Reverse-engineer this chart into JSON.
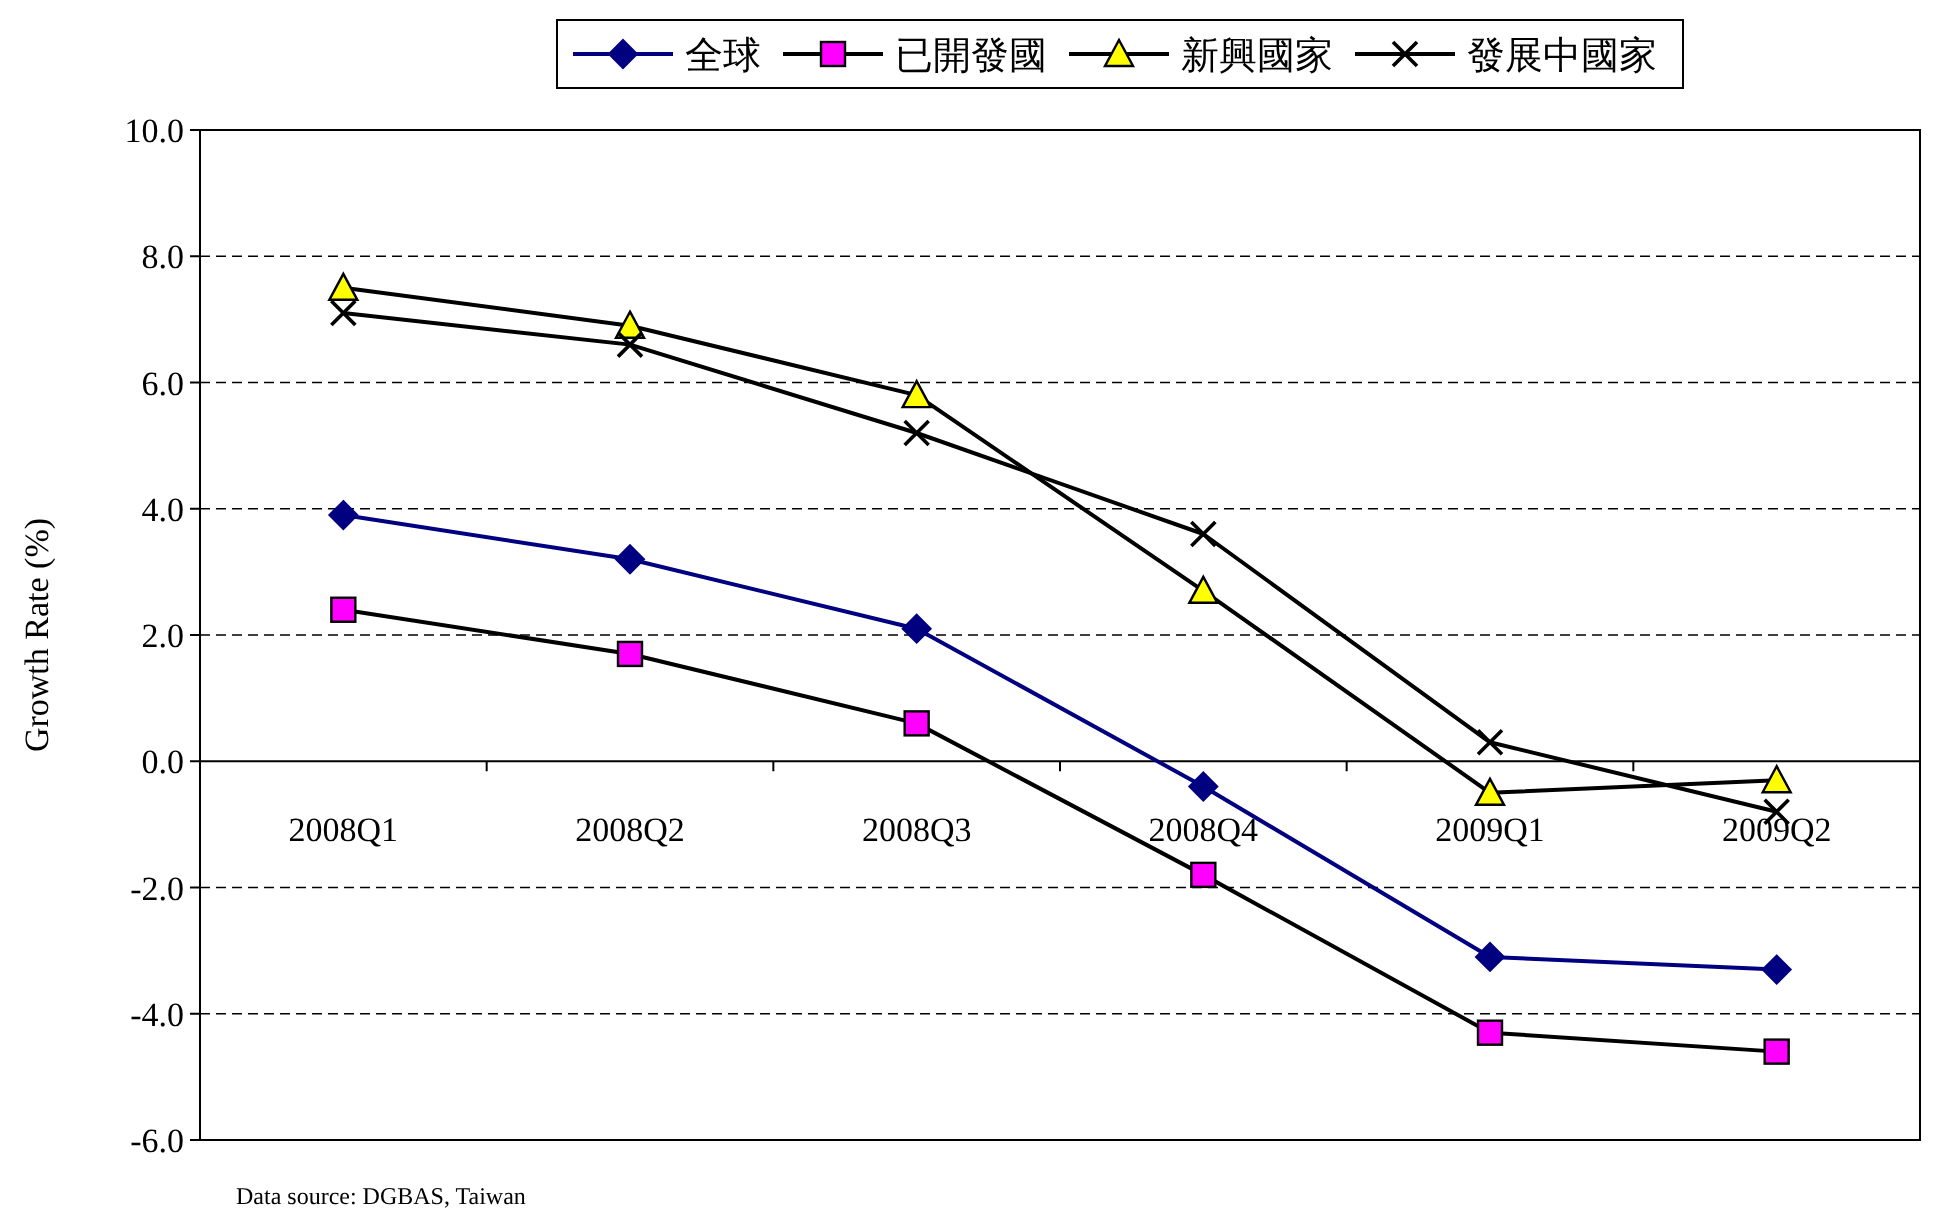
{
  "chart_data": {
    "type": "line",
    "ylabel": "Growth Rate (%)",
    "categories": [
      "2008Q1",
      "2008Q2",
      "2008Q3",
      "2008Q4",
      "2009Q1",
      "2009Q2"
    ],
    "series": [
      {
        "name": "全球",
        "color": "#000080",
        "colors": [
          "#000080",
          "#000080",
          "#000080",
          "#000080",
          "#000080",
          "#000080"
        ],
        "marker": "diamond",
        "values": [
          3.9,
          3.2,
          2.1,
          -0.4,
          -3.1,
          -3.3
        ]
      },
      {
        "name": "已開發國",
        "color": "#000000",
        "colors": [
          "#ff00ff",
          "#ff00ff",
          "#ff00ff",
          "#ff00ff",
          "#ff00ff",
          "#ff00ff"
        ],
        "marker": "square",
        "values": [
          2.4,
          1.7,
          0.6,
          -1.8,
          -4.3,
          -4.6
        ]
      },
      {
        "name": "新興國家",
        "color": "#000000",
        "colors": [
          "#ffff00",
          "#ffff00",
          "#ffff00",
          "#ffff00",
          "#ffff00",
          "#ffff00"
        ],
        "marker": "triangle",
        "values": [
          7.5,
          6.9,
          5.8,
          2.7,
          -0.5,
          -0.3
        ]
      },
      {
        "name": "發展中國家",
        "color": "#000000",
        "colors": [
          "#000000",
          "#000000",
          "#000000",
          "#000000",
          "#000000",
          "#000000"
        ],
        "marker": "cross",
        "values": [
          7.1,
          6.6,
          5.2,
          3.6,
          0.3,
          -0.8
        ]
      }
    ],
    "ylim": [
      -6,
      10
    ],
    "yticks": [
      {
        "value": -6,
        "label": "-6.0"
      },
      {
        "value": -4,
        "label": "-4.0"
      },
      {
        "value": -2,
        "label": "-2.0"
      },
      {
        "value": 0,
        "label": "0.0"
      },
      {
        "value": 2,
        "label": "2.0"
      },
      {
        "value": 4,
        "label": "4.0"
      },
      {
        "value": 6,
        "label": "6.0"
      },
      {
        "value": 8,
        "label": "8.0"
      },
      {
        "value": 10,
        "label": "10.0"
      }
    ],
    "grid": "y",
    "legend": "top",
    "line_style": "solid",
    "annotations": [
      "Data source: DGBAS, Taiwan"
    ]
  }
}
